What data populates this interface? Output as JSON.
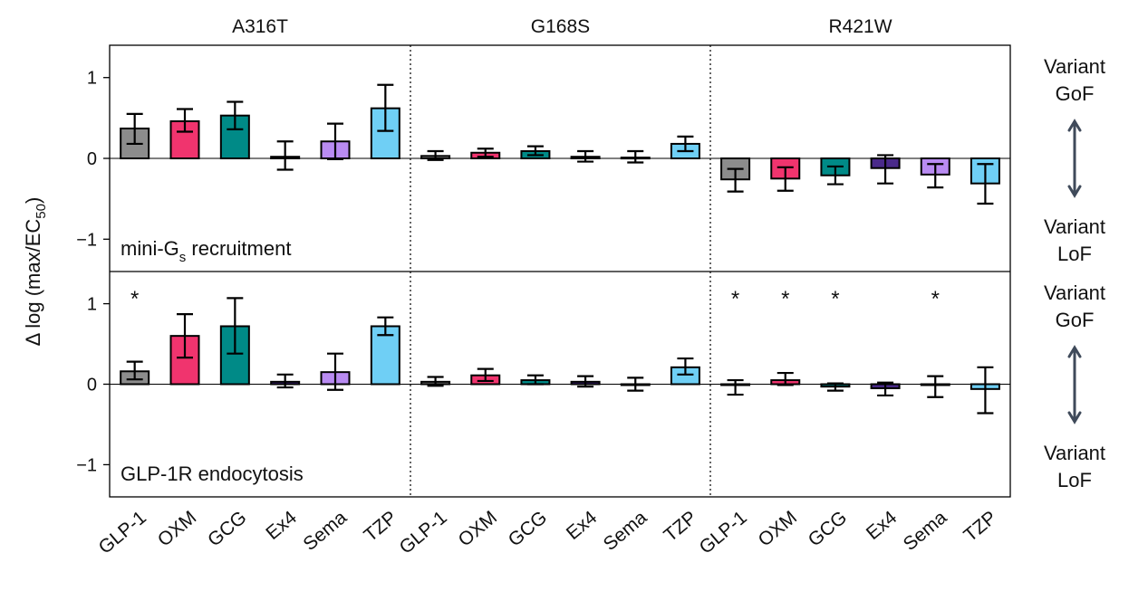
{
  "chart_data": {
    "type": "bar",
    "title": "",
    "ylabel": "Δ log (max/EC50)",
    "ylabel_parts": {
      "main": "Δ log (max/EC",
      "sub": "50",
      "close": ")"
    },
    "ylim": [
      -1.4,
      1.4
    ],
    "yticks": [
      {
        "v": 1,
        "label": "1"
      },
      {
        "v": 0,
        "label": "0"
      },
      {
        "v": -1,
        "label": "−1"
      }
    ],
    "variants": [
      "A316T",
      "G168S",
      "R421W"
    ],
    "ligands": [
      "GLP-1",
      "OXM",
      "GCG",
      "Ex4",
      "Sema",
      "TZP"
    ],
    "colors": {
      "GLP-1": "#8c8c8c",
      "OXM": "#f0346e",
      "GCG": "#008a87",
      "Ex4": "#4a2a8a",
      "Sema": "#b98bf2",
      "TZP": "#6fcff5"
    },
    "panels": [
      {
        "label_main": "mini-G",
        "label_sub": "s",
        "label_rest": " recruitment",
        "series": {
          "A316T": {
            "values": [
              0.37,
              0.46,
              0.53,
              0.02,
              0.21,
              0.62
            ],
            "err_low": [
              0.18,
              0.33,
              0.36,
              -0.14,
              -0.01,
              0.34
            ],
            "err_high": [
              0.55,
              0.61,
              0.7,
              0.21,
              0.43,
              0.91
            ],
            "stars": [
              false,
              false,
              false,
              false,
              false,
              false
            ]
          },
          "G168S": {
            "values": [
              0.03,
              0.07,
              0.09,
              0.02,
              0.01,
              0.18
            ],
            "err_low": [
              -0.02,
              0.02,
              0.04,
              -0.04,
              -0.05,
              0.09
            ],
            "err_high": [
              0.09,
              0.12,
              0.15,
              0.09,
              0.09,
              0.27
            ],
            "stars": [
              false,
              false,
              false,
              false,
              false,
              false
            ]
          },
          "R421W": {
            "values": [
              -0.26,
              -0.25,
              -0.21,
              -0.12,
              -0.2,
              -0.31
            ],
            "err_low": [
              -0.41,
              -0.4,
              -0.32,
              -0.31,
              -0.36,
              -0.56
            ],
            "err_high": [
              -0.13,
              -0.11,
              -0.1,
              0.04,
              -0.07,
              -0.07
            ],
            "stars": [
              false,
              false,
              false,
              false,
              false,
              false
            ]
          }
        }
      },
      {
        "label_main": "GLP-1R endocytosis",
        "label_sub": "",
        "label_rest": "",
        "series": {
          "A316T": {
            "values": [
              0.16,
              0.6,
              0.72,
              0.03,
              0.15,
              0.72
            ],
            "err_low": [
              0.06,
              0.33,
              0.38,
              -0.04,
              -0.07,
              0.61
            ],
            "err_high": [
              0.28,
              0.87,
              1.07,
              0.12,
              0.38,
              0.83
            ],
            "stars": [
              true,
              false,
              false,
              false,
              false,
              false
            ]
          },
          "G168S": {
            "values": [
              0.03,
              0.11,
              0.05,
              0.03,
              0.0,
              0.21
            ],
            "err_low": [
              -0.02,
              0.04,
              0.0,
              -0.03,
              -0.08,
              0.12
            ],
            "err_high": [
              0.09,
              0.19,
              0.11,
              0.1,
              0.08,
              0.32
            ],
            "stars": [
              false,
              false,
              false,
              false,
              false,
              false
            ]
          },
          "R421W": {
            "values": [
              -0.01,
              0.05,
              -0.03,
              -0.05,
              -0.01,
              -0.06
            ],
            "err_low": [
              -0.13,
              -0.01,
              -0.08,
              -0.14,
              -0.16,
              -0.36
            ],
            "err_high": [
              0.05,
              0.14,
              0.01,
              0.02,
              0.1,
              0.21
            ],
            "stars": [
              true,
              true,
              true,
              false,
              true,
              false
            ]
          }
        }
      }
    ],
    "side_annotations": [
      {
        "top": "Variant\nGoF",
        "bottom": "Variant\nLoF"
      },
      {
        "top": "Variant\nGoF",
        "bottom": "Variant\nLoF"
      }
    ],
    "star_symbol": "*"
  }
}
